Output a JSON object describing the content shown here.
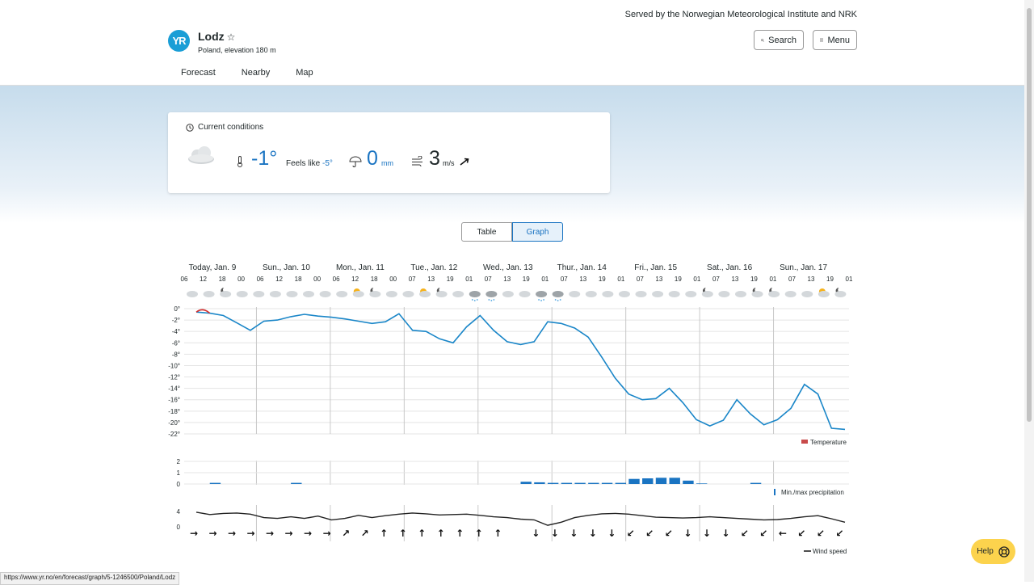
{
  "header": {
    "served_by": "Served by the Norwegian Meteorological Institute and NRK",
    "logo_text": "YR",
    "place_name": "Lodz",
    "place_sub": "Poland, elevation 180 m",
    "search_label": "Search",
    "menu_label": "Menu"
  },
  "tabs": [
    {
      "label": "Forecast",
      "active": true
    },
    {
      "label": "Nearby",
      "active": false
    },
    {
      "label": "Map",
      "active": false
    }
  ],
  "current": {
    "title": "Current conditions",
    "temperature": "-1°",
    "feels_like_label": "Feels like ",
    "feels_like_value": "-5°",
    "precipitation": "0",
    "precipitation_unit": "mm",
    "wind": "3",
    "wind_unit": "m/s",
    "symbol": "cloud-icon"
  },
  "view_toggle": {
    "table": "Table",
    "graph": "Graph",
    "selected": "graph"
  },
  "chart_data": {
    "type": "line",
    "days": [
      "Today, Jan. 9",
      "Sun., Jan. 10",
      "Mon., Jan. 11",
      "Tue., Jan. 12",
      "Wed., Jan. 13",
      "Thur., Jan. 14",
      "Fri., Jan. 15",
      "Sat., Jan. 16",
      "Sun., Jan. 17"
    ],
    "hours": [
      "06",
      "12",
      "18",
      "00",
      "06",
      "12",
      "18",
      "00",
      "06",
      "12",
      "18",
      "00",
      "07",
      "13",
      "19",
      "01",
      "07",
      "13",
      "19",
      "01",
      "07",
      "13",
      "19",
      "01",
      "07",
      "13",
      "19",
      "01",
      "07",
      "13",
      "19",
      "01",
      "07",
      "13",
      "19",
      "01"
    ],
    "symbols": [
      "cloud",
      "cloud",
      "partly-night",
      "cloud",
      "cloud",
      "cloud",
      "cloud",
      "cloud",
      "cloud",
      "partly-day",
      "sun-cloud",
      "partly-night",
      "cloud",
      "partly-day",
      "sun-cloud",
      "partly-night",
      "cloud",
      "snow-cloud",
      "snow",
      "cloud",
      "cloud",
      "snow",
      "snow-cloud",
      "cloud",
      "cloud",
      "cloud",
      "cloud",
      "cloud",
      "cloud",
      "cloud",
      "cloud",
      "partly-night",
      "cloud",
      "partly-day",
      "partly-night",
      "partly-night",
      "cloud",
      "partly-day",
      "sun-cloud",
      "partly-night"
    ],
    "temperature": {
      "name": "Temperature",
      "y_ticks": [
        "0°",
        "-2°",
        "-4°",
        "-6°",
        "-8°",
        "-10°",
        "-12°",
        "-14°",
        "-16°",
        "-18°",
        "-20°",
        "-22°"
      ],
      "ylim": [
        -22,
        0
      ],
      "values": [
        -0.6,
        -0.8,
        -1.2,
        -2.5,
        -3.8,
        -2.2,
        -2.0,
        -1.4,
        -1.0,
        -1.3,
        -1.5,
        -1.8,
        -2.2,
        -2.6,
        -2.3,
        -0.9,
        -3.8,
        -4.0,
        -5.3,
        -6.0,
        -3.2,
        -1.2,
        -3.8,
        -5.8,
        -6.3,
        -5.8,
        -2.3,
        -2.6,
        -3.4,
        -5.0,
        -8.5,
        -12.2,
        -15.0,
        -16.0,
        -15.8,
        -14.0,
        -16.5,
        -19.5,
        -20.6,
        -19.6,
        -16.0,
        -18.5,
        -20.4,
        -19.5,
        -17.5,
        -13.3,
        -15.0,
        -21.0,
        -21.2
      ]
    },
    "precipitation": {
      "name": "Min./max precipitation",
      "y_ticks": [
        "2",
        "1",
        "0"
      ],
      "ylim": [
        0,
        2
      ],
      "values": [
        0,
        0.1,
        0,
        0,
        0,
        0,
        0,
        0.1,
        0,
        0,
        0,
        0,
        0,
        0,
        0,
        0,
        0,
        0,
        0,
        0,
        0,
        0,
        0,
        0,
        0.2,
        0.15,
        0.1,
        0.1,
        0.1,
        0.1,
        0.1,
        0.1,
        0.45,
        0.5,
        0.55,
        0.55,
        0.3,
        0.05,
        0,
        0,
        0,
        0.1,
        0,
        0,
        0,
        0,
        0,
        0,
        0
      ]
    },
    "wind": {
      "name": "Wind speed",
      "y_ticks": [
        "4",
        "0"
      ],
      "ylim": [
        0,
        4
      ],
      "values": [
        3.8,
        3.2,
        3.5,
        3.6,
        3.3,
        2.4,
        2.2,
        2.6,
        2.2,
        2.8,
        1.8,
        2.2,
        3.0,
        2.4,
        2.9,
        3.3,
        3.6,
        3.4,
        3.1,
        3.2,
        3.3,
        3.0,
        2.6,
        2.4,
        2.0,
        1.8,
        0.4,
        1.2,
        2.4,
        3.0,
        3.4,
        3.5,
        3.3,
        2.9,
        2.5,
        2.4,
        2.3,
        2.4,
        2.6,
        2.4,
        2.2,
        2.0,
        1.8,
        1.9,
        2.2,
        2.6,
        2.9,
        2.1,
        1.2
      ],
      "directions": [
        "→",
        "→",
        "→",
        "→",
        "→",
        "→",
        "→",
        "→",
        "↗",
        "↗",
        "↑",
        "↑",
        "↑",
        "↑",
        "↑",
        "↑",
        "↑",
        "",
        "↓",
        "↓",
        "↓",
        "↓",
        "↓",
        "↙",
        "↙",
        "↙",
        "↓",
        "↓",
        "↓",
        "↙",
        "↙",
        "←",
        "↙",
        "↙",
        "↙"
      ]
    }
  },
  "status_url": "https://www.yr.no/en/forecast/graph/5-1246500/Poland/Lodz",
  "help_label": "Help"
}
